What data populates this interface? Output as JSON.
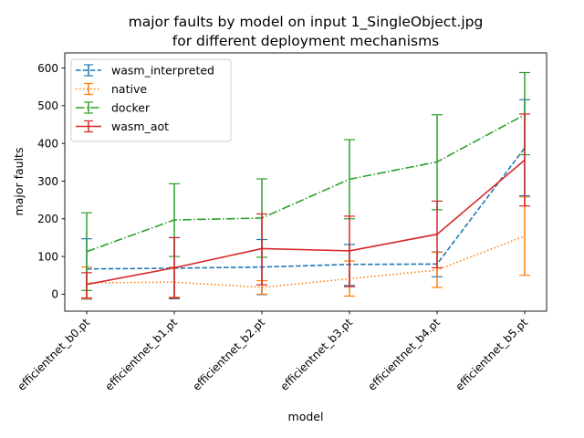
{
  "chart_data": {
    "type": "line",
    "title_line1": "major faults by model on input 1_SingleObject.jpg",
    "title_line2": "for different deployment mechanisms",
    "xlabel": "model",
    "ylabel": "major faults",
    "ylim": [
      -45,
      640
    ],
    "yticks": [
      0,
      100,
      200,
      300,
      400,
      500,
      600
    ],
    "categories": [
      "efficientnet_b0.pt",
      "efficientnet_b1.pt",
      "efficientnet_b2.pt",
      "efficientnet_b3.pt",
      "efficientnet_b4.pt",
      "efficientnet_b5.pt"
    ],
    "legend_position": "upper-left",
    "grid": false,
    "error_bars": true,
    "series": [
      {
        "name": "wasm_interpreted",
        "color": "#1f77b4",
        "linestyle": "dashed",
        "values": [
          67,
          69,
          72,
          79,
          80,
          388
        ],
        "err_low": [
          -13,
          -12,
          -1,
          23,
          46,
          261
        ],
        "err_high": [
          147,
          150,
          145,
          132,
          112,
          516
        ]
      },
      {
        "name": "native",
        "color": "#ff7f0e",
        "linestyle": "dotted",
        "values": [
          30,
          32,
          18,
          41,
          64,
          154
        ],
        "err_low": [
          -12,
          -8,
          0,
          -5,
          18,
          50
        ],
        "err_high": [
          72,
          72,
          36,
          88,
          111,
          258
        ]
      },
      {
        "name": "docker",
        "color": "#2ca02c",
        "linestyle": "dashdot",
        "values": [
          113,
          197,
          202,
          305,
          351,
          476
        ],
        "err_low": [
          10,
          100,
          98,
          200,
          224,
          370
        ],
        "err_high": [
          216,
          293,
          306,
          410,
          476,
          588
        ]
      },
      {
        "name": "wasm_aot",
        "color": "#d62728",
        "linestyle": "solid",
        "values": [
          26,
          70,
          121,
          115,
          159,
          356
        ],
        "err_low": [
          -10,
          -10,
          25,
          20,
          70,
          234
        ],
        "err_high": [
          57,
          150,
          213,
          207,
          247,
          478
        ]
      }
    ]
  }
}
